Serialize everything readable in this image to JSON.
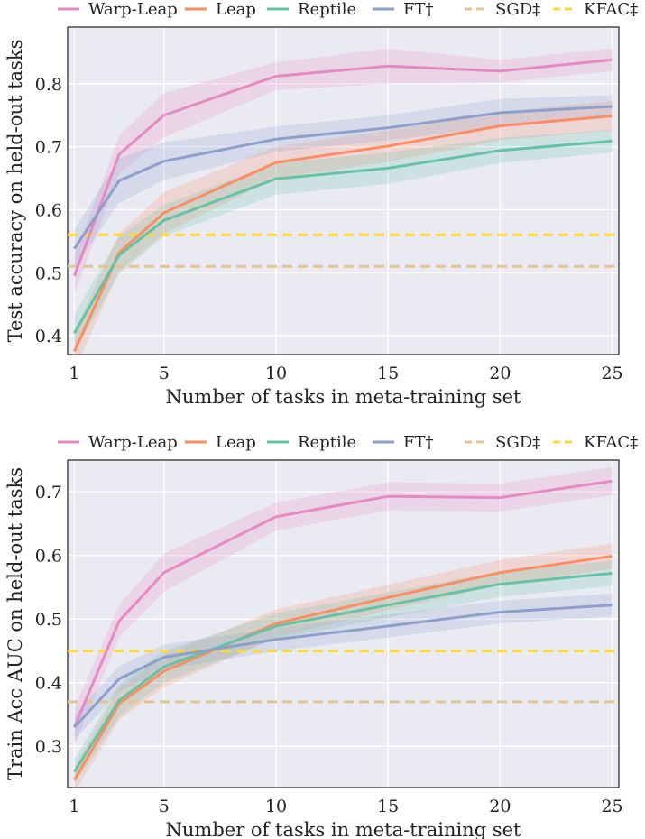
{
  "legend": {
    "items": [
      {
        "key": "warp_leap",
        "label": "Warp-Leap",
        "color": "#e78ac3",
        "dashed": false
      },
      {
        "key": "leap",
        "label": "Leap",
        "color": "#fc8d62",
        "dashed": false
      },
      {
        "key": "reptile",
        "label": "Reptile",
        "color": "#66c2a5",
        "dashed": false
      },
      {
        "key": "ft",
        "label": "FT†",
        "color": "#8da0cb",
        "dashed": false
      },
      {
        "key": "sgd",
        "label": "SGD‡",
        "color": "#e5c494",
        "dashed": true
      },
      {
        "key": "kfac",
        "label": "KFAC‡",
        "color": "#ffd92f",
        "dashed": true
      }
    ]
  },
  "chart_data": [
    {
      "type": "line",
      "xlabel": "Number of tasks in meta-training set",
      "ylabel": "Test accuracy on held-out tasks",
      "xlim": [
        0.7,
        25.3
      ],
      "ylim": [
        0.37,
        0.89
      ],
      "xticks": [
        1,
        5,
        10,
        15,
        20,
        25
      ],
      "yticks": [
        0.4,
        0.5,
        0.6,
        0.7,
        0.8
      ],
      "grid": true,
      "legend_position": "top",
      "x": [
        1,
        3,
        5,
        10,
        15,
        20,
        25
      ],
      "series": [
        {
          "key": "warp_leap",
          "name": "Warp-Leap",
          "values": [
            0.495,
            0.688,
            0.75,
            0.812,
            0.828,
            0.82,
            0.838
          ],
          "band": [
            0.03,
            0.03,
            0.035,
            0.022,
            0.028,
            0.018,
            0.018
          ]
        },
        {
          "key": "leap",
          "name": "Leap",
          "values": [
            0.375,
            0.532,
            0.595,
            0.675,
            0.701,
            0.733,
            0.749
          ],
          "band": [
            0.03,
            0.03,
            0.033,
            0.025,
            0.025,
            0.023,
            0.023
          ]
        },
        {
          "key": "reptile",
          "name": "Reptile",
          "values": [
            0.404,
            0.528,
            0.583,
            0.649,
            0.666,
            0.694,
            0.709
          ],
          "band": [
            0.03,
            0.03,
            0.025,
            0.025,
            0.025,
            0.02,
            0.018
          ]
        },
        {
          "key": "ft",
          "name": "FT†",
          "values": [
            0.538,
            0.646,
            0.677,
            0.712,
            0.73,
            0.754,
            0.764
          ],
          "band": [
            0.03,
            0.035,
            0.03,
            0.02,
            0.02,
            0.022,
            0.018
          ]
        },
        {
          "key": "sgd",
          "name": "SGD‡",
          "constant": 0.51
        },
        {
          "key": "kfac",
          "name": "KFAC‡",
          "constant": 0.56
        }
      ]
    },
    {
      "type": "line",
      "xlabel": "Number of tasks in meta-training set",
      "ylabel": "Train Acc AUC on held-out tasks",
      "xlim": [
        0.7,
        25.3
      ],
      "ylim": [
        0.235,
        0.75
      ],
      "xticks": [
        1,
        5,
        10,
        15,
        20,
        25
      ],
      "yticks": [
        0.3,
        0.4,
        0.5,
        0.6,
        0.7
      ],
      "grid": true,
      "legend_position": "top",
      "x": [
        1,
        3,
        5,
        10,
        15,
        20,
        25
      ],
      "series": [
        {
          "key": "warp_leap",
          "name": "Warp-Leap",
          "values": [
            0.33,
            0.497,
            0.573,
            0.661,
            0.693,
            0.691,
            0.717
          ],
          "band": [
            0.03,
            0.025,
            0.03,
            0.022,
            0.022,
            0.022,
            0.022
          ]
        },
        {
          "key": "leap",
          "name": "Leap",
          "values": [
            0.247,
            0.367,
            0.418,
            0.493,
            0.534,
            0.573,
            0.599
          ],
          "band": [
            0.02,
            0.025,
            0.025,
            0.022,
            0.02,
            0.02,
            0.02
          ]
        },
        {
          "key": "reptile",
          "name": "Reptile",
          "values": [
            0.26,
            0.372,
            0.425,
            0.489,
            0.522,
            0.555,
            0.572
          ],
          "band": [
            0.02,
            0.025,
            0.025,
            0.02,
            0.02,
            0.02,
            0.02
          ]
        },
        {
          "key": "ft",
          "name": "FT†",
          "values": [
            0.33,
            0.406,
            0.44,
            0.468,
            0.489,
            0.511,
            0.522
          ],
          "band": [
            0.02,
            0.02,
            0.02,
            0.018,
            0.018,
            0.018,
            0.018
          ]
        },
        {
          "key": "sgd",
          "name": "SGD‡",
          "constant": 0.37
        },
        {
          "key": "kfac",
          "name": "KFAC‡",
          "constant": 0.45
        }
      ]
    }
  ]
}
